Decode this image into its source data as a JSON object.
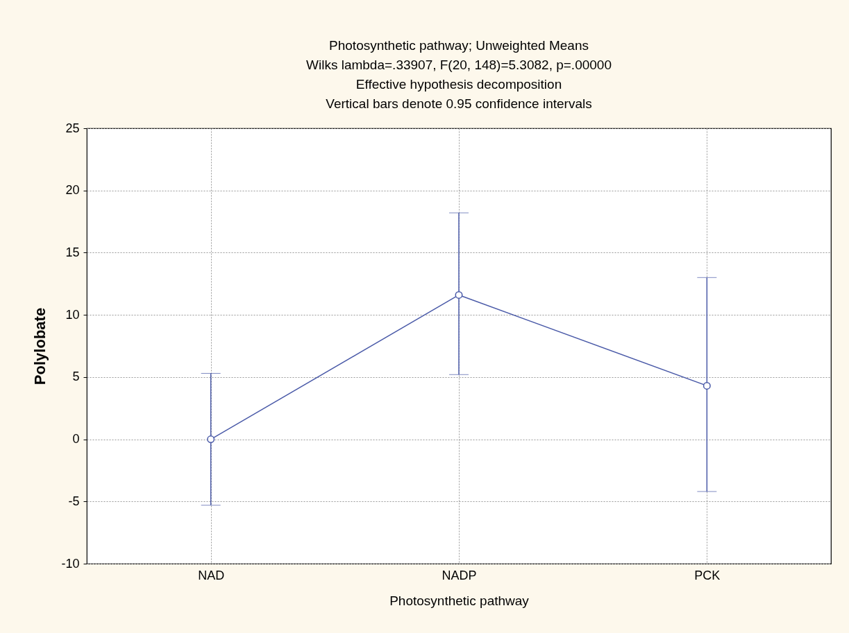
{
  "chart_data": {
    "type": "line",
    "title": "Photosynthetic pathway; Unweighted Means",
    "subtitle": "Wilks lambda=.33907, F(20, 148)=5.3082, p=.00000\nEffective hypothesis decomposition\nVertical bars denote 0.95 confidence intervals",
    "xlabel": "Photosynthetic pathway",
    "ylabel": "Polylobate",
    "categories": [
      "NAD",
      "NADP",
      "PCK"
    ],
    "series": [
      {
        "color": "#4a5aa8",
        "values": [
          0,
          11.6,
          4.3
        ],
        "errors": [
          [
            -5.3,
            5.3
          ],
          [
            5.2,
            18.2
          ],
          [
            -4.2,
            13.0
          ]
        ]
      }
    ],
    "ylim": [
      -10,
      25
    ],
    "yticks": [
      -10,
      -5,
      0,
      5,
      10,
      15,
      20,
      25
    ],
    "grid": true,
    "marker": "circle",
    "line_style": "solid"
  }
}
